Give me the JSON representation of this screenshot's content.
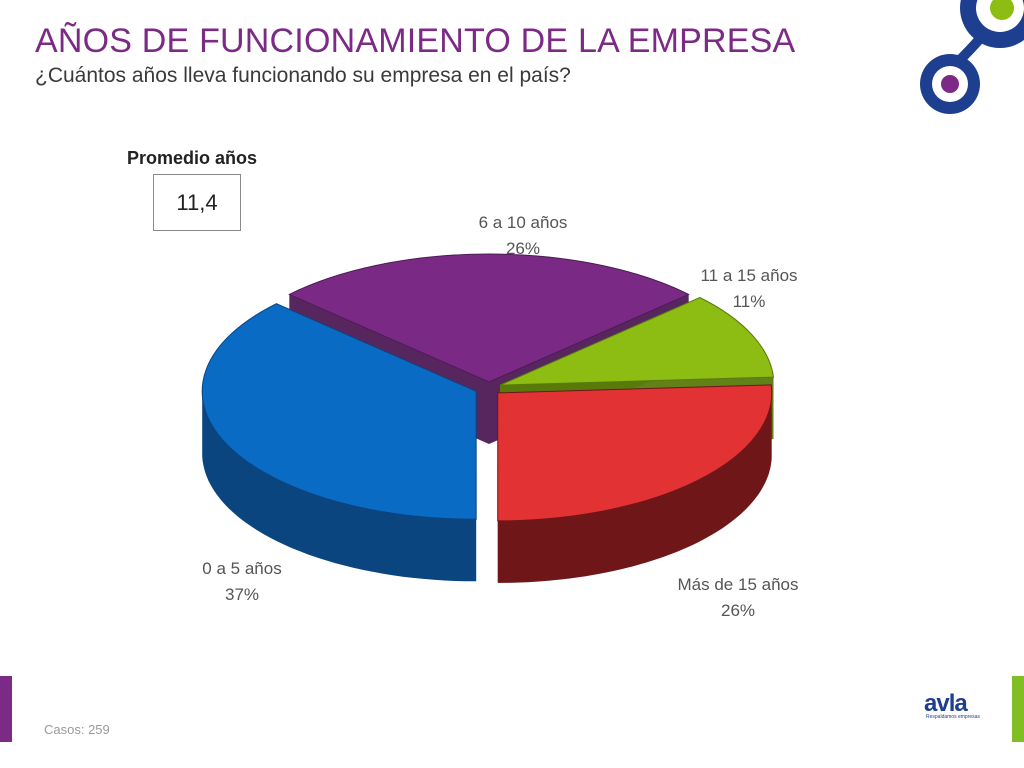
{
  "header": {
    "title": "AÑOS DE FUNCIONAMIENTO DE LA EMPRESA",
    "subtitle": "¿Cuántos años lleva funcionando su empresa en el país?"
  },
  "average": {
    "label": "Promedio años",
    "value": "11,4"
  },
  "footer": {
    "casos": "Casos: 259",
    "logo_text": "avla",
    "logo_tagline": "Respaldamos empresas"
  },
  "colors": {
    "title": "#7b2a86",
    "accent_green": "#7fbf23",
    "accent_purple": "#7b2a86",
    "accent_blue": "#1e3f8f"
  },
  "chart_data": {
    "type": "pie",
    "style": "3d-exploded",
    "categories": [
      "6 a 10 años",
      "11 a 15 años",
      "Más de 15 años",
      "0 a 5 años"
    ],
    "values": [
      26,
      11,
      26,
      37
    ],
    "value_labels": [
      "26%",
      "11%",
      "26%",
      "37%"
    ],
    "colors": [
      "#7a2a85",
      "#8dbd12",
      "#e23233",
      "#0a6bc4"
    ],
    "side_colors": [
      "#4e1a56",
      "#5a7a0c",
      "#6e1618",
      "#0b4580"
    ]
  }
}
